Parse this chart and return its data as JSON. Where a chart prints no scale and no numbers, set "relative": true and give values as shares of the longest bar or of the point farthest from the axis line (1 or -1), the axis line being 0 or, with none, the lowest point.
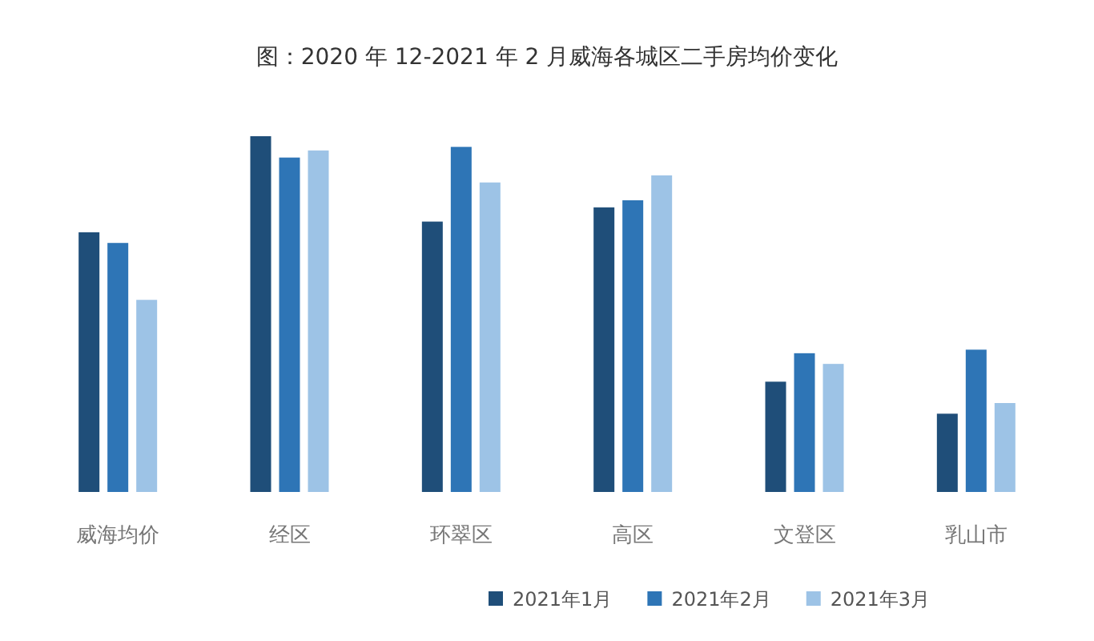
{
  "chart_data": {
    "type": "bar",
    "title": "图：2020 年 12-2021 年 2 月威海各城区二手房均价变化",
    "relative": true,
    "categories": [
      "威海均价",
      "经区",
      "环翠区",
      "高区",
      "文登区",
      "乳山市"
    ],
    "series": [
      {
        "name": "2021年1月",
        "color": "#1f4e79",
        "values": [
          0.73,
          1,
          0.76,
          0.8,
          0.31,
          0.22
        ]
      },
      {
        "name": "2021年2月",
        "color": "#2e75b6",
        "values": [
          0.7,
          0.94,
          0.97,
          0.82,
          0.39,
          0.4
        ]
      },
      {
        "name": "2021年3月",
        "color": "#9dc3e6",
        "values": [
          0.54,
          0.96,
          0.87,
          0.89,
          0.36,
          0.25
        ]
      }
    ],
    "legend": "bottom",
    "grid": false
  }
}
